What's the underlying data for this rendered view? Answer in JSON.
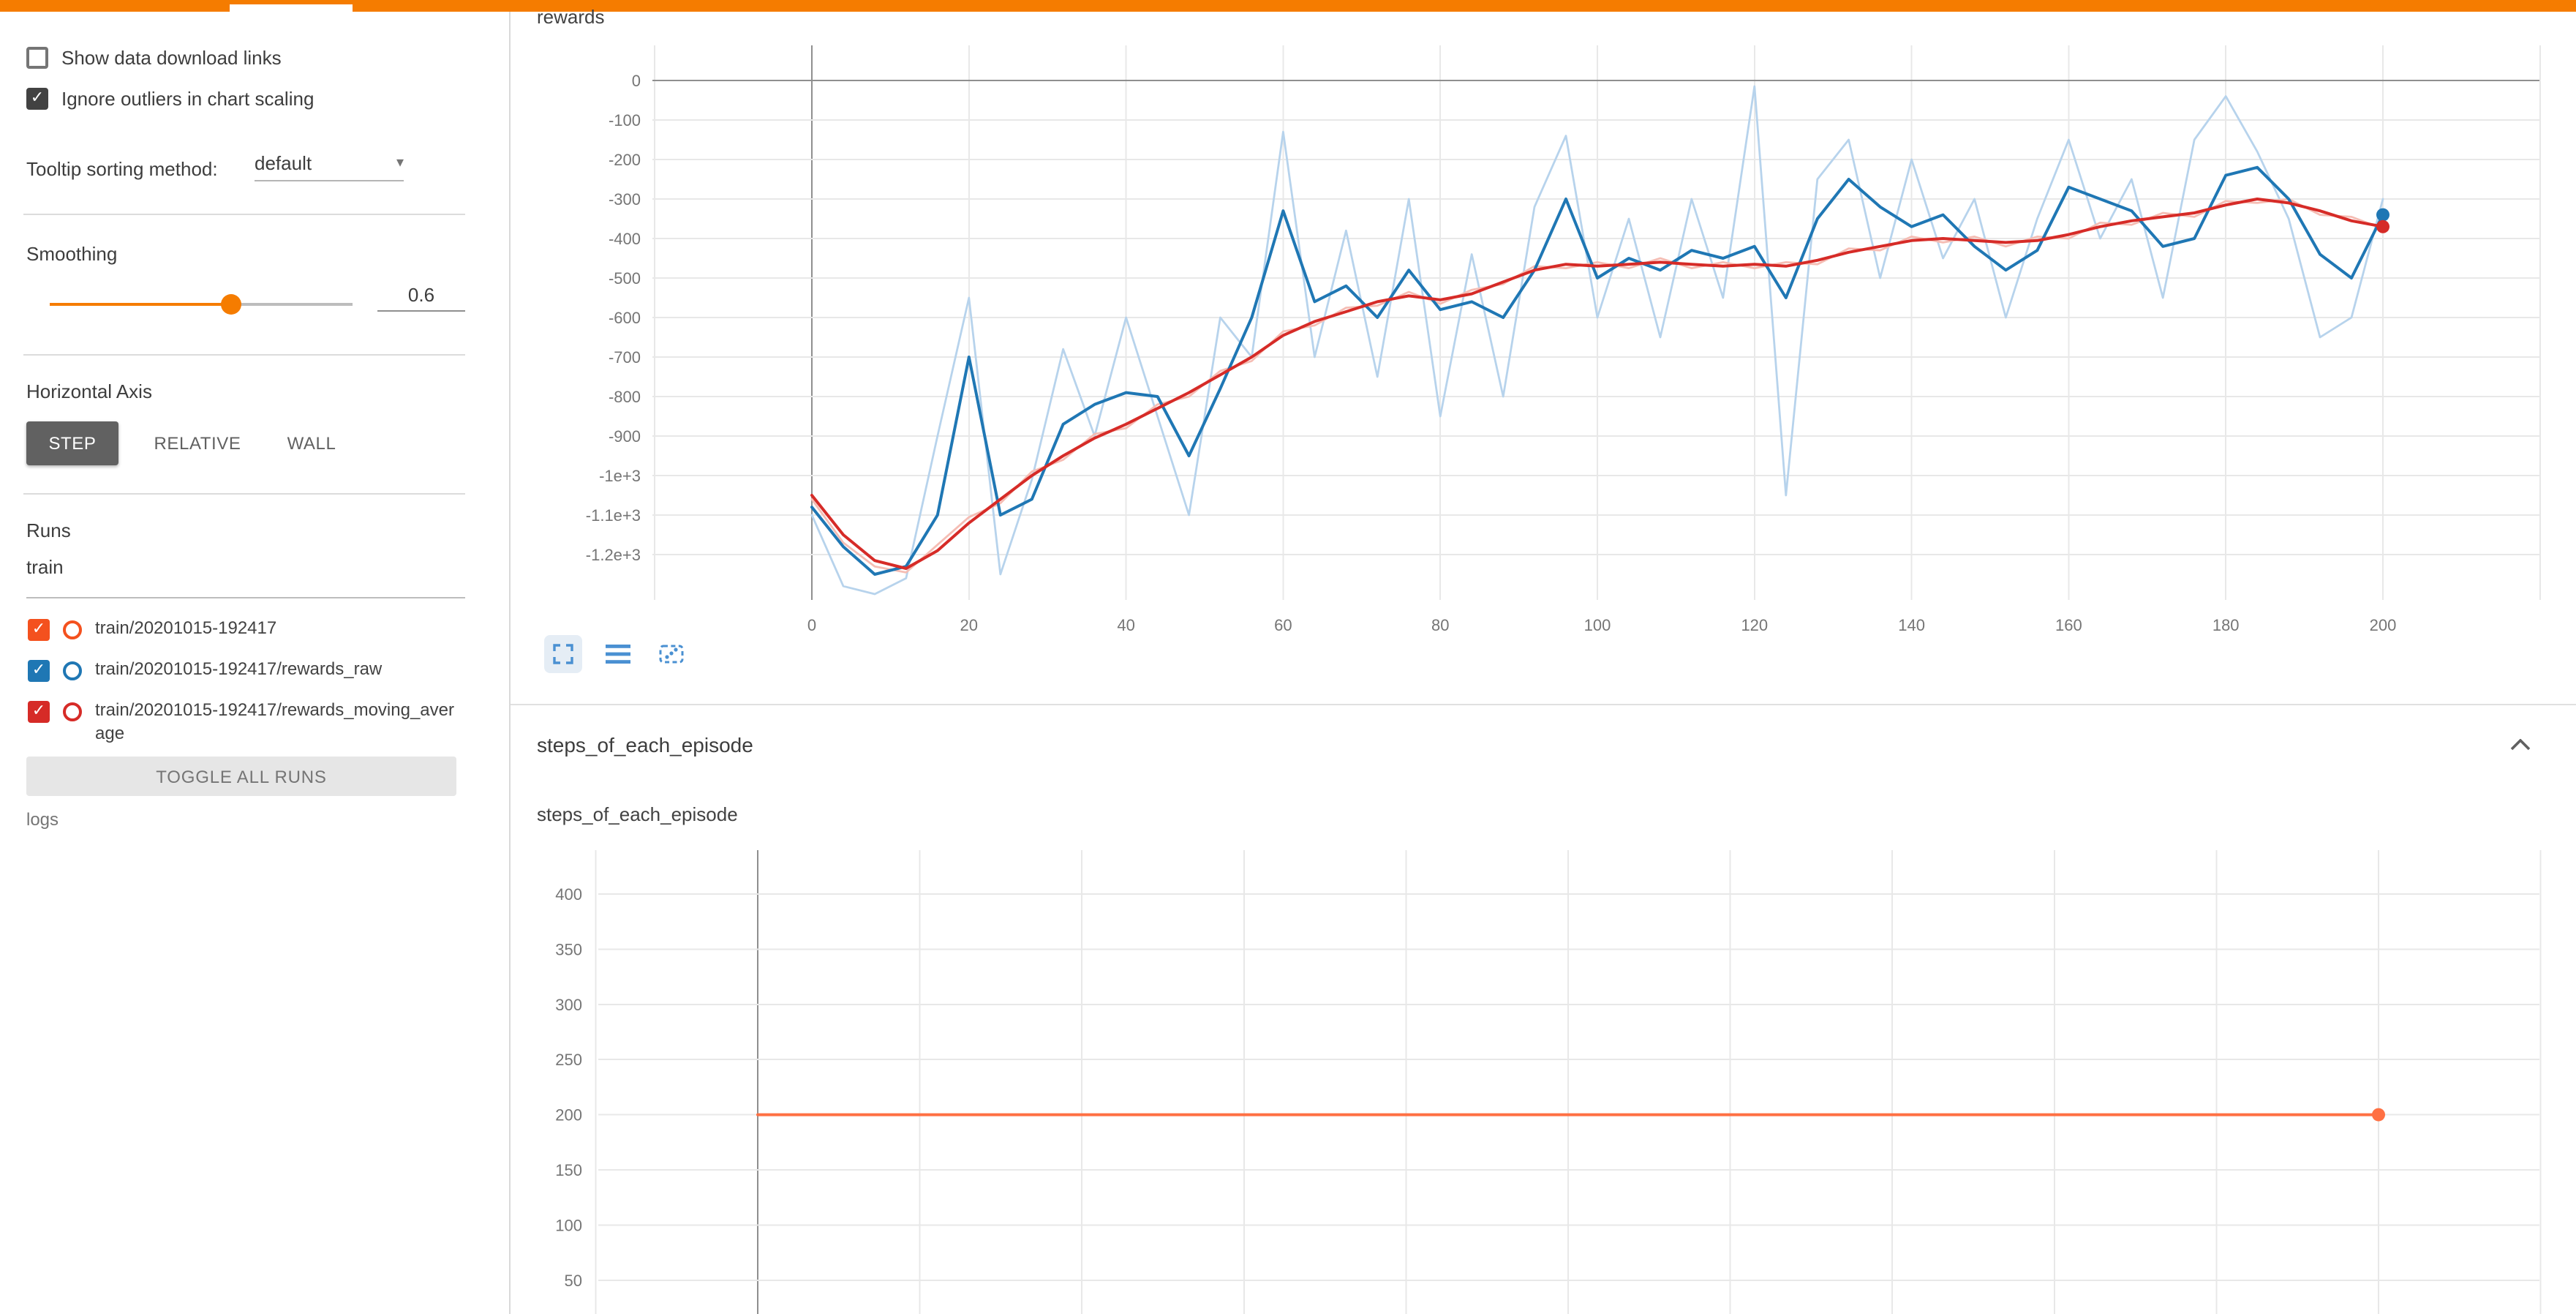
{
  "colors": {
    "accent": "#f57c00",
    "grid": "#e8e8e8",
    "zero_axis": "#8f8f8f",
    "axis_label": "#757575"
  },
  "sidebar": {
    "checkboxes": [
      {
        "label": "Show data download links",
        "checked": false
      },
      {
        "label": "Ignore outliers in chart scaling",
        "checked": true
      }
    ],
    "tooltip_sorting": {
      "label": "Tooltip sorting method:",
      "value": "default"
    },
    "smoothing": {
      "label": "Smoothing",
      "value": "0.6"
    },
    "horizontal_axis": {
      "label": "Horizontal Axis",
      "options": [
        "STEP",
        "RELATIVE",
        "WALL"
      ],
      "selected": "STEP"
    },
    "runs": {
      "label": "Runs",
      "filter_value": "train",
      "items": [
        {
          "label": "train/20201015-192417",
          "color": "#f4511e",
          "checked": true
        },
        {
          "label": "train/20201015-192417/rewards_raw",
          "color": "#1f77b4",
          "checked": true
        },
        {
          "label": "train/20201015-192417/rewards_moving_average",
          "color": "#d62b27",
          "checked": true
        }
      ],
      "toggle_all_label": "TOGGLE ALL RUNS"
    },
    "logs_label": "logs"
  },
  "main": {
    "section_title": "steps_of_each_episode",
    "toolbar_icons": [
      "expand-chart-icon",
      "data-table-icon",
      "fit-domain-icon"
    ]
  },
  "chart_data": [
    {
      "type": "line",
      "title": "rewards",
      "xlabel": "",
      "ylabel": "",
      "xlim": [
        -20,
        220
      ],
      "ylim": [
        -1315,
        90
      ],
      "grid": true,
      "legend_position": "none",
      "x_ticks": [
        0,
        20,
        40,
        60,
        80,
        100,
        120,
        140,
        160,
        180,
        200
      ],
      "y_ticks": [
        0,
        -100,
        -200,
        -300,
        -400,
        -500,
        -600,
        -700,
        -800,
        -900,
        -1000,
        -1100,
        -1200
      ],
      "y_tick_labels": [
        "0",
        "-100",
        "-200",
        "-300",
        "-400",
        "-500",
        "-600",
        "-700",
        "-800",
        "-900",
        "-1e+3",
        "-1.1e+3",
        "-1.2e+3"
      ],
      "x": [
        0,
        4,
        8,
        12,
        16,
        20,
        24,
        28,
        32,
        36,
        40,
        44,
        48,
        52,
        56,
        60,
        64,
        68,
        72,
        76,
        80,
        84,
        88,
        92,
        96,
        100,
        104,
        108,
        112,
        116,
        120,
        124,
        128,
        132,
        136,
        140,
        144,
        148,
        152,
        156,
        160,
        164,
        168,
        172,
        176,
        180,
        184,
        188,
        192,
        196,
        200
      ],
      "series": [
        {
          "name": "train/20201015-192417/rewards_raw (unsmoothed)",
          "color": "#b7d3ec",
          "line_width": 1.4,
          "dot_last": false,
          "values": [
            -1100,
            -1280,
            -1300,
            -1260,
            -900,
            -550,
            -1250,
            -1010,
            -680,
            -900,
            -600,
            -850,
            -1100,
            -600,
            -700,
            -130,
            -700,
            -380,
            -750,
            -300,
            -850,
            -440,
            -800,
            -320,
            -140,
            -600,
            -350,
            -650,
            -300,
            -550,
            -15,
            -1050,
            -250,
            -150,
            -500,
            -200,
            -450,
            -300,
            -600,
            -350,
            -150,
            -400,
            -250,
            -550,
            -150,
            -40,
            -180,
            -350,
            -650,
            -600,
            -300
          ]
        },
        {
          "name": "train/20201015-192417/rewards_moving_average (unsmoothed)",
          "color": "#f5bdb4",
          "line_width": 1.4,
          "dot_last": false,
          "values": [
            -1060,
            -1170,
            -1230,
            -1245,
            -1175,
            -1105,
            -1070,
            -990,
            -960,
            -895,
            -880,
            -820,
            -800,
            -735,
            -710,
            -635,
            -620,
            -575,
            -570,
            -535,
            -565,
            -530,
            -515,
            -470,
            -475,
            -460,
            -475,
            -450,
            -475,
            -460,
            -475,
            -460,
            -465,
            -425,
            -430,
            -395,
            -410,
            -395,
            -420,
            -395,
            -400,
            -360,
            -365,
            -335,
            -345,
            -305,
            -310,
            -300,
            -340,
            -345,
            -375
          ]
        },
        {
          "name": "train/20201015-192417/rewards_raw (smoothed 0.6)",
          "color": "#1f77b4",
          "line_width": 2,
          "dot_last": true,
          "values": [
            -1080,
            -1180,
            -1250,
            -1230,
            -1100,
            -700,
            -1100,
            -1060,
            -870,
            -820,
            -790,
            -800,
            -950,
            -780,
            -600,
            -330,
            -560,
            -520,
            -600,
            -480,
            -580,
            -560,
            -600,
            -480,
            -300,
            -500,
            -450,
            -480,
            -430,
            -450,
            -420,
            -550,
            -350,
            -250,
            -320,
            -370,
            -340,
            -420,
            -480,
            -430,
            -270,
            -300,
            -330,
            -420,
            -400,
            -240,
            -220,
            -300,
            -440,
            -500,
            -340
          ]
        },
        {
          "name": "train/20201015-192417/rewards_moving_average (smoothed 0.6)",
          "color": "#d62b27",
          "line_width": 2,
          "dot_last": true,
          "values": [
            -1050,
            -1150,
            -1215,
            -1235,
            -1190,
            -1120,
            -1060,
            -1000,
            -950,
            -905,
            -870,
            -830,
            -790,
            -745,
            -700,
            -645,
            -610,
            -585,
            -560,
            -545,
            -555,
            -540,
            -510,
            -480,
            -465,
            -470,
            -465,
            -460,
            -465,
            -470,
            -465,
            -470,
            -455,
            -435,
            -420,
            -405,
            -400,
            -405,
            -410,
            -405,
            -390,
            -370,
            -355,
            -345,
            -335,
            -315,
            -300,
            -310,
            -330,
            -355,
            -370
          ]
        }
      ]
    },
    {
      "type": "line",
      "title": "steps_of_each_episode",
      "xlabel": "",
      "ylabel": "",
      "xlim": [
        -20,
        220
      ],
      "ylim": [
        25,
        440
      ],
      "grid": true,
      "legend_position": "none",
      "x_ticks": [],
      "y_ticks": [
        400,
        350,
        300,
        250,
        200,
        150,
        100,
        50
      ],
      "y_tick_labels": [
        "400",
        "350",
        "300",
        "250",
        "200",
        "150",
        "100",
        "50"
      ],
      "x": [
        0,
        40,
        80,
        120,
        160,
        200
      ],
      "series": [
        {
          "name": "train/20201015-192417",
          "color": "#ff7043",
          "line_width": 2,
          "dot_last": true,
          "values": [
            200,
            200,
            200,
            200,
            200,
            200
          ]
        }
      ]
    }
  ]
}
